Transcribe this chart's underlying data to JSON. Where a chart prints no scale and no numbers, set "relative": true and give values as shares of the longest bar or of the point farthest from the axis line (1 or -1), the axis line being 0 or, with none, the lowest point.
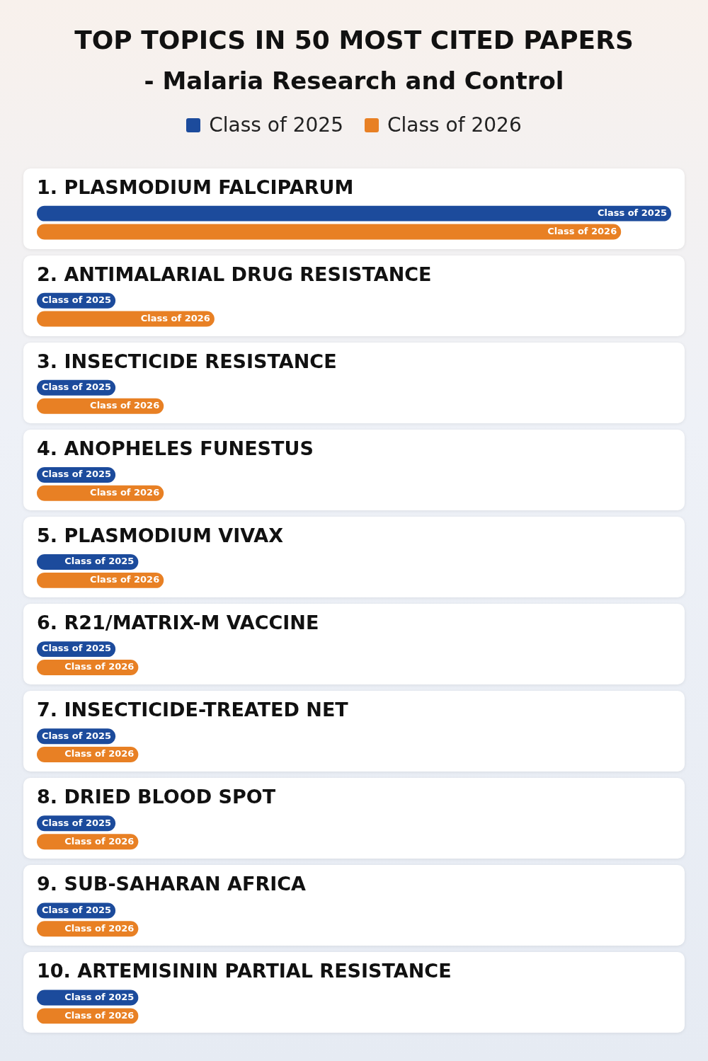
{
  "chart_data": {
    "type": "bar",
    "orientation": "horizontal",
    "relative": true,
    "legend": "top",
    "title": "TOP TOPICS IN 50 MOST CITED PAPERS",
    "subtitle": "- Malaria Research and Control",
    "categories": [
      "1. PLASMODIUM FALCIPARUM",
      "2. ANTIMALARIAL DRUG RESISTANCE",
      "3. INSECTICIDE RESISTANCE",
      "4. ANOPHELES FUNESTUS",
      "5. PLASMODIUM VIVAX",
      "6. R21/MATRIX-M VACCINE",
      "7. INSECTICIDE-TREATED NET",
      "8. DRIED BLOOD SPOT",
      "9. SUB-SAHARAN AFRICA",
      "10. ARTEMISININ PARTIAL RESISTANCE"
    ],
    "series": [
      {
        "name": "Class of 2025",
        "color": "#1c4b9c",
        "values": [
          1,
          0.124,
          0.124,
          0.124,
          0.16,
          0.124,
          0.124,
          0.124,
          0.124,
          0.16
        ]
      },
      {
        "name": "Class of 2026",
        "color": "#e88024",
        "values": [
          0.921,
          0.28,
          0.2,
          0.2,
          0.2,
          0.16,
          0.16,
          0.16,
          0.16,
          0.16
        ]
      }
    ]
  }
}
